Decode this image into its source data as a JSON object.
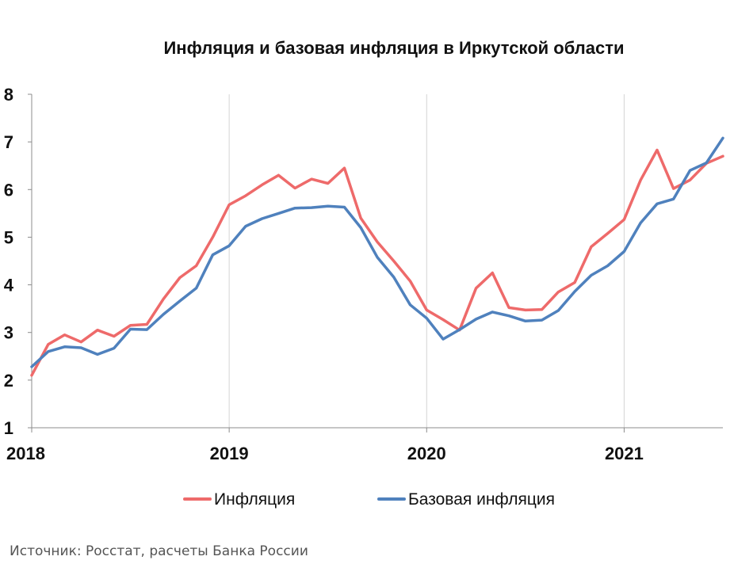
{
  "chart_data": {
    "type": "line",
    "title": "Инфляция и базовая инфляция в Иркутской области",
    "xlabel": "",
    "ylabel": "",
    "x_ticks": [
      "2018",
      "2019",
      "2020",
      "2021"
    ],
    "y_ticks": [
      "1",
      "2",
      "3",
      "4",
      "5",
      "6",
      "7",
      "8"
    ],
    "ylim": [
      1,
      8
    ],
    "grid": "vertical",
    "legend": "bottom",
    "x": [
      "2018-01",
      "2018-02",
      "2018-03",
      "2018-04",
      "2018-05",
      "2018-06",
      "2018-07",
      "2018-08",
      "2018-09",
      "2018-10",
      "2018-11",
      "2018-12",
      "2019-01",
      "2019-02",
      "2019-03",
      "2019-04",
      "2019-05",
      "2019-06",
      "2019-07",
      "2019-08",
      "2019-09",
      "2019-10",
      "2019-11",
      "2019-12",
      "2020-01",
      "2020-02",
      "2020-03",
      "2020-04",
      "2020-05",
      "2020-06",
      "2020-07",
      "2020-08",
      "2020-09",
      "2020-10",
      "2020-11",
      "2020-12",
      "2021-01",
      "2021-02",
      "2021-03",
      "2021-04",
      "2021-05",
      "2021-06",
      "2021-07"
    ],
    "series": [
      {
        "name": "Инфляция",
        "color": "#ee6a6a",
        "values": [
          2.1,
          2.75,
          2.95,
          2.8,
          3.05,
          2.92,
          3.15,
          3.17,
          3.7,
          4.15,
          4.4,
          5.0,
          5.68,
          5.87,
          6.1,
          6.3,
          6.03,
          6.22,
          6.13,
          6.45,
          5.4,
          4.9,
          4.5,
          4.08,
          3.47,
          3.27,
          3.05,
          3.93,
          4.25,
          3.52,
          3.47,
          3.48,
          3.85,
          4.05,
          4.8,
          5.08,
          5.37,
          6.2,
          6.83,
          6.02,
          6.2,
          6.55,
          6.7
        ]
      },
      {
        "name": "Базовая инфляция",
        "color": "#4f81bd",
        "values": [
          2.28,
          2.6,
          2.7,
          2.68,
          2.54,
          2.67,
          3.07,
          3.06,
          3.38,
          3.66,
          3.93,
          4.63,
          4.82,
          5.23,
          5.39,
          5.5,
          5.61,
          5.62,
          5.65,
          5.63,
          5.2,
          4.58,
          4.16,
          3.58,
          3.3,
          2.86,
          3.06,
          3.28,
          3.43,
          3.35,
          3.24,
          3.26,
          3.46,
          3.86,
          4.2,
          4.4,
          4.7,
          5.3,
          5.7,
          5.8,
          6.4,
          6.56,
          7.08
        ]
      }
    ]
  },
  "source": "Источник: Росстат, расчеты Банка России"
}
